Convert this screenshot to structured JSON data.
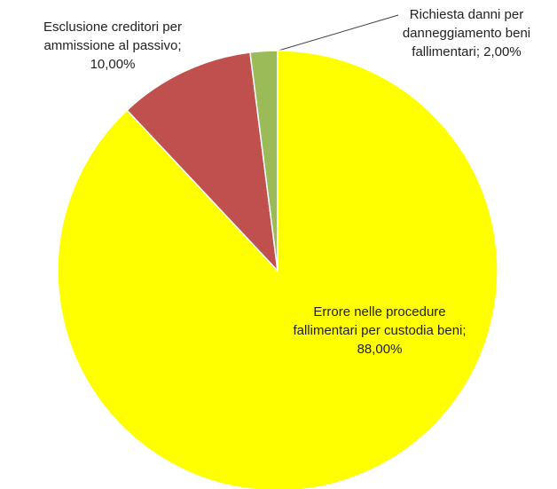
{
  "chart_data": {
    "type": "pie",
    "categories": [
      "Errore nelle procedure fallimentari per custodia beni",
      "Esclusione creditori per ammissione al passivo",
      "Richiesta danni per danneggiamento beni fallimentari"
    ],
    "values": [
      88,
      10,
      2
    ],
    "value_labels": [
      "88,00%",
      "10,00%",
      "2,00%"
    ],
    "label_separator": ";",
    "colors": [
      "#ffff00",
      "#c0504d",
      "#9bbb59"
    ]
  }
}
